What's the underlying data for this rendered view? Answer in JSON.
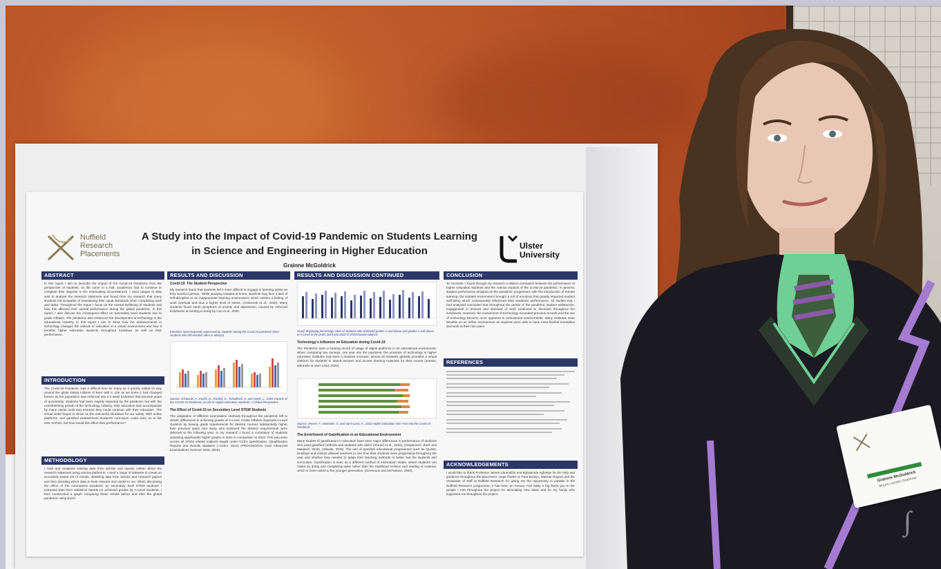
{
  "poster": {
    "logo_left": {
      "line1": "Nuffield",
      "line2": "Research",
      "line3": "Placements"
    },
    "logo_right": {
      "line1": "Ulster",
      "line2": "University"
    },
    "title_line1": "A Study into the Impact of Covid-19 Pandemic on Students Learning",
    "title_line2": "in Science and Engineering in Higher Education",
    "author": "Grainne McGoldrick",
    "sections": {
      "abstract": {
        "heading": "ABSTRACT",
        "body": "In this report I aim to describe the impact of the Covid-19 Pandemic from the perspective of students. As life came to a halt, academics had to continue or complete their degrees in the extenuating circumstances. I used ranges of data sets to analyse the research statement and found from my research that many students felt incapable of maintaining their usual standards when completing work and tasks. Throughout the report I focus on the mental wellbeing of students and how this affected their overall performance during the global pandemic. In this report, I also discuss the consequent effect on Secondary level students due to grade inflation. The pandemic also enhanced the development of technology in the educational industry, in this report I aim to show how the advancements in technology changed the outlook of education in a virtual environment and how it benefits higher education students throughout lockdown as well as their performance."
      },
      "introduction": {
        "heading": "INTRODUCTION",
        "body": "The Covid-19 Pandemic was a difficult time for many as it quickly rattled its way around the globe taking millions of lives with it. Life as we knew it had changed forever as the population was enforced into a 2-week lockdown that became years of uncertainty. Students had been majorly impacted by the pandemic but with the overwhelming growth of the technology industry, their education was accompanied by many useful tools that ensured they could continue with their education. The virtual world began to thrive as the real-world shutdown for our safety. With online platforms, and gamified assessments student's curriculum could carry on in the new 'normal', but how would this affect their performance?"
      },
      "methodology": {
        "heading": "METHODOLOGY",
        "body": "I read and analysed existing data from articles and reports written about the research statement using various platforms. I used a range of datasets to create an accurately based set of results, obtaining data from articles and research papers and then deciding which data is most relevant and useful to me. When discussing the effect of the coronavirus pandemic on secondary level STEM students I extracted data from statistical reports on achieved grades by A-Level students. I then constructed a graph comparing these results before and after the global pandemic using Excel."
      },
      "results": {
        "heading": "RESULTS AND DISCUSSION",
        "sub1": "Covid-19: The Student Perspective",
        "body1": "My research found that students felt it more difficult to engage in learning online as they would in person, 'While studying isolated at home, students may face a lack of self-discipline or an inappropriate learning environment, which evokes a feeling of work overload and thus a higher level of stress.' (Aristovnik et al., 2020). Many students found harsh symptoms of anxiety and depression, caused by enforced lockdowns according to study by Cao et al., 2020.",
        "caption1": "Emotions most frequently expressed by students during the Covid-19 pandemic (Red students who felt emotion often or always)",
        "source1": "Source: Aristovnik, A., Keržič, D., Ravšelj, D., Tomaževič, N. and Umek, L., 2020 Impacts of the COVID-19 Pandemic on Life of Higher Education Students: A Global Perspective",
        "sub2": "The Effect of Covid-19 on Secondary Level STEM Students",
        "body2": "The adaptation of different examination methods throughout the pandemic left to drastic differences in achieving grades at A-Level. Grade inflation impacted A-Level students by leaving grade requirements for desired courses substantially higher than previous years and many who achieved the desired requirements were deferred to the following year. In my research I found a correlation of students achieving significantly higher grades in 2021 in comparison to 2019. This was seen across all STEM related subjects taught under CCEA specification. (Qualification Reports and Results Statistics | CCEA, 2021) (PROVISIONAL GCE Advanced Examinations Summer 2018, 2019)."
      },
      "results_continued": {
        "heading": "RESULTS AND DISCUSSION CONTINUED",
        "caption1": "Graph displaying percentage rates of students who achieved grades C and above and grades A and above at A-Level in the years 2019 and 2020 in STEM based subjects",
        "sub1": "Technology's Influence on Education during Covid-19",
        "body1": "The Pandemic seen a soaring record of usage of digital platforms in an educational environment. When comparing two surveys, one year into the pandemic the provision of technology in higher education institutes had seen a massive increase; almost all institutes globally provided a virtual platform for students to attend lectures and access learning materials for their course (Jensen, Marmolin & Van't Land, 2022).",
        "source2": "Source: Jensen, T., Marmolin, G. and Van't Land, H., 2022 Higher Education One Year into the Covid-19 Pandemic.",
        "sub2": "The Enrichment of Gamification in an Educational Environment",
        "body2": "Many studies of gamification in education have seen major differences in performance of students who used gamified methods and students who didn't (Ahmed et al., 2020), (Gerpanović, Žarić and Matijević, 2015), (Sitavits, 2015). The use of gamified educational programmes such as Quizlet, Duolingo and Kahoot allowed teachers to see how their students were progressing throughout the year and whether they needed to adapt their teaching methods to better suit the students and curriculum. Gamification is seen as a different method of information intake, where students can intake by doing and completing tasks rather than the traditional revision and reading of material, which is more suited to the younger generation. (Kirnenuus and McFarlane, 2004)."
      },
      "conclusion": {
        "heading": "CONCLUSION",
        "body": "To conclude, I found through my research a distinct correlation between the performance of higher education students and the various impacts of the Covid-19 pandemic. In general, student performance dropped as the pandemic progressed, with the introduction of remote learning, the isolated environment brought a toll of emotions that greatly impacted student well-being which consequently influenced their academic performance. All studies that I had analysed concluded that throughout the period of the pandemic student satisfaction, engagement in lessons and standard of work continued to decrease throughout the lockdowns. However, the evolvement of technology exceeded previous records and the use of technology became more apparent in educational environments. Many institutes seen benefits on an online environment as students were able to have more flexible timetables and work at their own pace."
      },
      "references": {
        "heading": "REFERENCES"
      },
      "acknowledgements": {
        "heading": "ACKNOWLEDGEMENTS",
        "body": "I would like to thank Professor James Uhomoibhi and Babatunde Agbolaje for the help and guidance throughout the placement. Huge thanks to Paul Beaton, Melissa Nugent and the remainder of staff at Nuffield Research for giving me the opportunity to partake in the Nuffield Research programme, it has been an honour. And lastly a big thank you to the people I met throughout the project for stimulating new ideas and for my family who supported me throughout the project."
      }
    }
  },
  "badge": {
    "name": "Grainne McGoldrick",
    "school": "Mount Lourdes Grammar"
  },
  "colors": {
    "header_navy": "#2b3767",
    "wall_orange": "#b85227",
    "chart_bar": "#2b3767",
    "shirt_green": "#5fbf84",
    "stripe_purple": "#a57bd1"
  }
}
